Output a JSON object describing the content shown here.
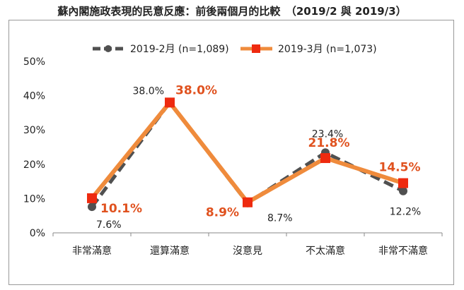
{
  "title": "蘇內閣施政表現的民意反應：前後兩個月的比較　（2019/2 與 2019/3）",
  "colors": {
    "feb": "#505050",
    "mar": "#ef8b3c",
    "mar_marker": "#ee2a0f",
    "mar_label": "#e0521f"
  },
  "chart_data": {
    "type": "line",
    "categories": [
      "非常滿意",
      "還算滿意",
      "沒意見",
      "不太滿意",
      "非常不滿意"
    ],
    "ylim": [
      0,
      50
    ],
    "yticks": [
      "0%",
      "10%",
      "20%",
      "30%",
      "40%",
      "50%"
    ],
    "grid": false,
    "legend_position": "top",
    "series": [
      {
        "name": "2019-2月 (n=1,089)",
        "values": [
          7.6,
          38.0,
          8.7,
          23.4,
          12.2
        ],
        "labels": [
          "7.6%",
          "38.0%",
          "8.7%",
          "23.4%",
          "12.2%"
        ]
      },
      {
        "name": "2019-3月 (n=1,073)",
        "values": [
          10.1,
          38.0,
          8.9,
          21.8,
          14.5
        ],
        "labels": [
          "10.1%",
          "38.0%",
          "8.9%",
          "21.8%",
          "14.5%"
        ]
      }
    ]
  }
}
